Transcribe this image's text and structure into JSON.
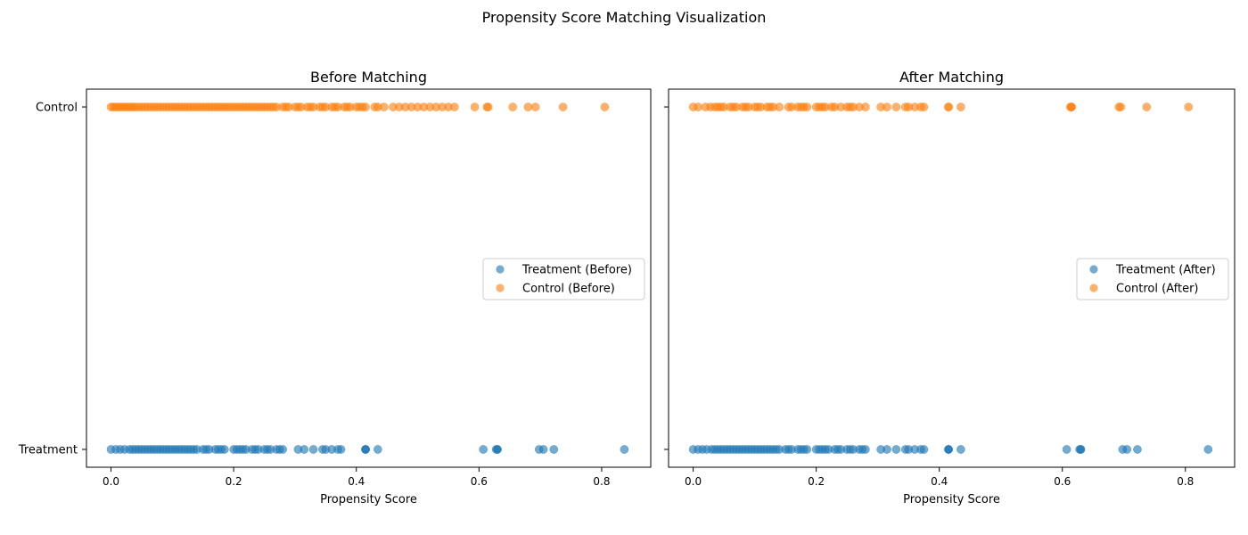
{
  "figure": {
    "suptitle": "Propensity Score Matching Visualization"
  },
  "colors": {
    "treatment": "#1f77b4",
    "control": "#ff7f0e"
  },
  "chart_data": [
    {
      "type": "scatter",
      "title": "Before Matching",
      "xlabel": "Propensity Score",
      "ylabel": "",
      "xlim": [
        -0.04,
        0.88
      ],
      "xticks": [
        "0.0",
        "0.2",
        "0.4",
        "0.6",
        "0.8"
      ],
      "ycategories": [
        "Treatment",
        "Control"
      ],
      "legend_position": "center-right",
      "series": [
        {
          "name": "Treatment (Before)",
          "y": "Treatment",
          "x": [
            0.0,
            0.008,
            0.015,
            0.022,
            0.03,
            0.035,
            0.04,
            0.045,
            0.05,
            0.055,
            0.06,
            0.065,
            0.07,
            0.075,
            0.08,
            0.085,
            0.09,
            0.095,
            0.1,
            0.105,
            0.11,
            0.115,
            0.12,
            0.125,
            0.13,
            0.135,
            0.14,
            0.15,
            0.155,
            0.16,
            0.17,
            0.175,
            0.18,
            0.185,
            0.2,
            0.205,
            0.21,
            0.215,
            0.22,
            0.23,
            0.235,
            0.24,
            0.25,
            0.255,
            0.26,
            0.27,
            0.275,
            0.28,
            0.305,
            0.315,
            0.33,
            0.345,
            0.35,
            0.36,
            0.37,
            0.375,
            0.415,
            0.415,
            0.415,
            0.435,
            0.607,
            0.628,
            0.63,
            0.63,
            0.698,
            0.705,
            0.722,
            0.837
          ]
        },
        {
          "name": "Control (Before)",
          "y": "Control",
          "x": [
            0.0,
            0.004,
            0.008,
            0.012,
            0.016,
            0.02,
            0.024,
            0.028,
            0.032,
            0.036,
            0.04,
            0.045,
            0.05,
            0.055,
            0.06,
            0.065,
            0.07,
            0.075,
            0.08,
            0.085,
            0.09,
            0.095,
            0.1,
            0.105,
            0.11,
            0.115,
            0.12,
            0.125,
            0.13,
            0.135,
            0.14,
            0.145,
            0.15,
            0.155,
            0.16,
            0.165,
            0.17,
            0.175,
            0.18,
            0.185,
            0.19,
            0.195,
            0.2,
            0.205,
            0.21,
            0.215,
            0.22,
            0.225,
            0.23,
            0.235,
            0.24,
            0.245,
            0.25,
            0.255,
            0.26,
            0.265,
            0.27,
            0.28,
            0.285,
            0.29,
            0.3,
            0.305,
            0.31,
            0.32,
            0.325,
            0.33,
            0.34,
            0.345,
            0.35,
            0.36,
            0.365,
            0.37,
            0.38,
            0.385,
            0.39,
            0.4,
            0.405,
            0.41,
            0.415,
            0.43,
            0.435,
            0.445,
            0.46,
            0.47,
            0.48,
            0.49,
            0.5,
            0.51,
            0.52,
            0.53,
            0.54,
            0.55,
            0.56,
            0.593,
            0.613,
            0.615,
            0.655,
            0.68,
            0.692,
            0.737,
            0.805
          ]
        }
      ]
    },
    {
      "type": "scatter",
      "title": "After Matching",
      "xlabel": "Propensity Score",
      "ylabel": "",
      "xlim": [
        -0.04,
        0.88
      ],
      "xticks": [
        "0.0",
        "0.2",
        "0.4",
        "0.6",
        "0.8"
      ],
      "ycategories": [
        "Treatment",
        "Control"
      ],
      "legend_position": "center-right",
      "series": [
        {
          "name": "Treatment (After)",
          "y": "Treatment",
          "x": [
            0.0,
            0.008,
            0.015,
            0.022,
            0.03,
            0.035,
            0.04,
            0.045,
            0.05,
            0.055,
            0.06,
            0.065,
            0.07,
            0.075,
            0.08,
            0.085,
            0.09,
            0.095,
            0.1,
            0.105,
            0.11,
            0.115,
            0.12,
            0.125,
            0.13,
            0.135,
            0.14,
            0.15,
            0.155,
            0.16,
            0.17,
            0.175,
            0.18,
            0.185,
            0.2,
            0.205,
            0.21,
            0.215,
            0.22,
            0.23,
            0.235,
            0.24,
            0.25,
            0.255,
            0.26,
            0.27,
            0.275,
            0.28,
            0.305,
            0.315,
            0.33,
            0.345,
            0.35,
            0.36,
            0.37,
            0.375,
            0.415,
            0.415,
            0.415,
            0.435,
            0.607,
            0.628,
            0.63,
            0.63,
            0.698,
            0.705,
            0.722,
            0.837
          ]
        },
        {
          "name": "Control (After)",
          "y": "Control",
          "x": [
            0.0,
            0.008,
            0.02,
            0.028,
            0.035,
            0.04,
            0.045,
            0.05,
            0.06,
            0.065,
            0.07,
            0.08,
            0.085,
            0.09,
            0.1,
            0.105,
            0.11,
            0.12,
            0.125,
            0.13,
            0.14,
            0.155,
            0.16,
            0.17,
            0.175,
            0.18,
            0.185,
            0.2,
            0.205,
            0.21,
            0.215,
            0.225,
            0.23,
            0.24,
            0.25,
            0.255,
            0.26,
            0.27,
            0.28,
            0.305,
            0.315,
            0.33,
            0.345,
            0.35,
            0.36,
            0.37,
            0.375,
            0.415,
            0.415,
            0.435,
            0.613,
            0.615,
            0.615,
            0.692,
            0.695,
            0.737,
            0.805
          ]
        }
      ]
    }
  ]
}
